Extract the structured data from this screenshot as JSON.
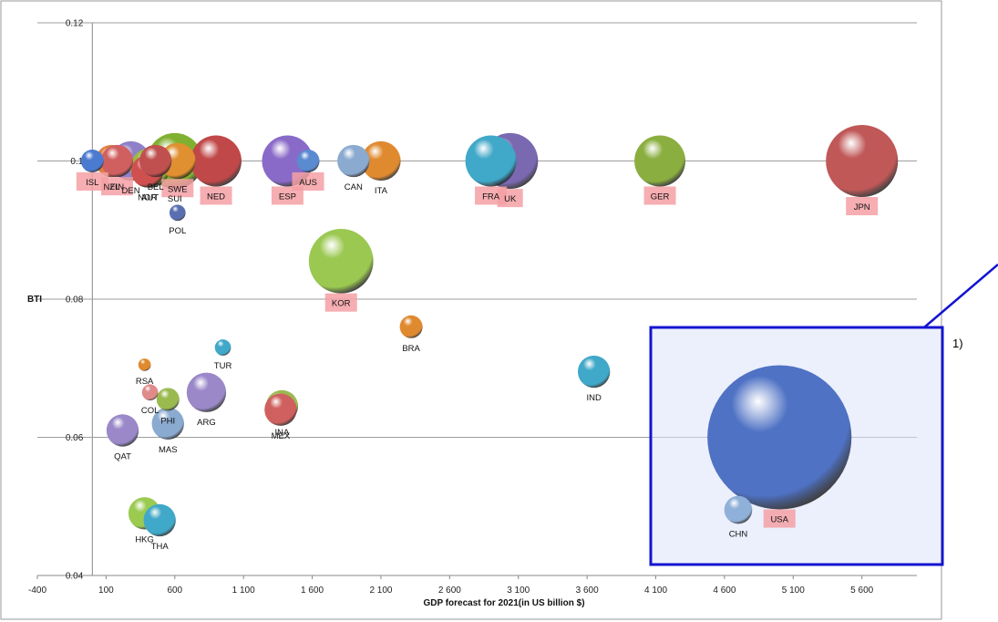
{
  "chart_data": {
    "type": "scatter",
    "subtype": "bubble",
    "xlabel": "GDP forecast for 2021(in US billion $)",
    "ylabel": "BTI",
    "xlim": [
      -400,
      6000
    ],
    "ylim": [
      0.04,
      0.12
    ],
    "x_ticks": [
      -400,
      100,
      600,
      1100,
      1600,
      2100,
      2600,
      3100,
      3600,
      4100,
      4600,
      5100,
      5600
    ],
    "x_tick_labels": [
      "-400",
      "100",
      "600",
      "1 100",
      "1 600",
      "2 100",
      "2 600",
      "3 100",
      "3 600",
      "4 100",
      "4 600",
      "5 100",
      "5 600"
    ],
    "y_ticks": [
      0.04,
      0.06,
      0.08,
      0.1,
      0.12
    ],
    "y_tick_labels": [
      "0.04",
      "0.06",
      "0.08",
      "0.1",
      "0.12"
    ],
    "grid": "horizontal",
    "points": [
      {
        "label": "ISL",
        "x": 0,
        "y": 0.1,
        "color": "#4a7bd0",
        "size": 1,
        "highlight": true
      },
      {
        "label": "NZL",
        "x": 140,
        "y": 0.1,
        "color": "#e08040",
        "size": 2,
        "highlight": false
      },
      {
        "label": "FIN",
        "x": 180,
        "y": 0.1,
        "color": "#d06060",
        "size": 2,
        "highlight": true
      },
      {
        "label": "DEN",
        "x": 280,
        "y": 0.1,
        "color": "#9080c8",
        "size": 3,
        "highlight": false
      },
      {
        "label": "NOR",
        "x": 400,
        "y": 0.0985,
        "color": "#d05050",
        "size": 2,
        "highlight": false
      },
      {
        "label": "BEL",
        "x": 460,
        "y": 0.1,
        "color": "#c05050",
        "size": 2,
        "highlight": false
      },
      {
        "label": "AUT",
        "x": 420,
        "y": 0.099,
        "color": "#9aba40",
        "size": 3,
        "highlight": false
      },
      {
        "label": "SUI",
        "x": 600,
        "y": 0.1,
        "color": "#80b030",
        "size": 6,
        "highlight": false
      },
      {
        "label": "SWE",
        "x": 620,
        "y": 0.1,
        "color": "#e09030",
        "size": 2.5,
        "highlight": true
      },
      {
        "label": "POL",
        "x": 620,
        "y": 0.0925,
        "color": "#5a6fb0",
        "size": 0.5,
        "highlight": false
      },
      {
        "label": "NED",
        "x": 900,
        "y": 0.1,
        "color": "#c04848",
        "size": 5,
        "highlight": true
      },
      {
        "label": "ESP",
        "x": 1420,
        "y": 0.1,
        "color": "#8a6ac8",
        "size": 5,
        "highlight": true
      },
      {
        "label": "AUS",
        "x": 1570,
        "y": 0.1,
        "color": "#5a8ad0",
        "size": 1,
        "highlight": true
      },
      {
        "label": "CAN",
        "x": 1900,
        "y": 0.1,
        "color": "#8aaad0",
        "size": 2,
        "highlight": false
      },
      {
        "label": "ITA",
        "x": 2100,
        "y": 0.1,
        "color": "#e08a30",
        "size": 3,
        "highlight": false
      },
      {
        "label": "KOR",
        "x": 1810,
        "y": 0.0855,
        "color": "#9ac850",
        "size": 8,
        "highlight": true
      },
      {
        "label": "BRA",
        "x": 2320,
        "y": 0.076,
        "color": "#e08a30",
        "size": 1,
        "highlight": false
      },
      {
        "label": "FRA",
        "x": 2900,
        "y": 0.1,
        "color": "#40a8c8",
        "size": 5,
        "highlight": true
      },
      {
        "label": "UK",
        "x": 3040,
        "y": 0.1,
        "color": "#7a68b0",
        "size": 6,
        "highlight": true
      },
      {
        "label": "GER",
        "x": 4130,
        "y": 0.1,
        "color": "#8aae40",
        "size": 5,
        "highlight": true
      },
      {
        "label": "JPN",
        "x": 5600,
        "y": 0.1,
        "color": "#c05858",
        "size": 10,
        "highlight": true
      },
      {
        "label": "TUR",
        "x": 950,
        "y": 0.073,
        "color": "#40a8c8",
        "size": 0.5,
        "highlight": false
      },
      {
        "label": "RSA",
        "x": 380,
        "y": 0.0705,
        "color": "#e08a30",
        "size": 0.3,
        "highlight": false
      },
      {
        "label": "COL",
        "x": 420,
        "y": 0.0665,
        "color": "#e08a8a",
        "size": 0.5,
        "highlight": false
      },
      {
        "label": "PHI",
        "x": 550,
        "y": 0.0655,
        "color": "#9aba50",
        "size": 1,
        "highlight": false
      },
      {
        "label": "ARG",
        "x": 830,
        "y": 0.0665,
        "color": "#9a88c8",
        "size": 3,
        "highlight": false
      },
      {
        "label": "MAS",
        "x": 550,
        "y": 0.062,
        "color": "#8aaad0",
        "size": 2,
        "highlight": false
      },
      {
        "label": "QAT",
        "x": 220,
        "y": 0.061,
        "color": "#9a88c8",
        "size": 2,
        "highlight": false
      },
      {
        "label": "INA",
        "x": 1380,
        "y": 0.0645,
        "color": "#9aba50",
        "size": 2,
        "highlight": false
      },
      {
        "label": "MEX",
        "x": 1370,
        "y": 0.064,
        "color": "#d06060",
        "size": 2,
        "highlight": false
      },
      {
        "label": "IND",
        "x": 3650,
        "y": 0.0695,
        "color": "#40a8c8",
        "size": 2,
        "highlight": false
      },
      {
        "label": "HKG",
        "x": 380,
        "y": 0.049,
        "color": "#9aca50",
        "size": 2,
        "highlight": false
      },
      {
        "label": "THA",
        "x": 490,
        "y": 0.048,
        "color": "#40a8c8",
        "size": 2,
        "highlight": false
      },
      {
        "label": "USA",
        "x": 5000,
        "y": 0.06,
        "color": "#4f72c4",
        "size": 40,
        "highlight": true
      },
      {
        "label": "CHN",
        "x": 4700,
        "y": 0.0495,
        "color": "#8fb0d8",
        "size": 1.5,
        "highlight": false
      }
    ],
    "annotation": {
      "label": "1)",
      "color": "#1414d0"
    }
  }
}
